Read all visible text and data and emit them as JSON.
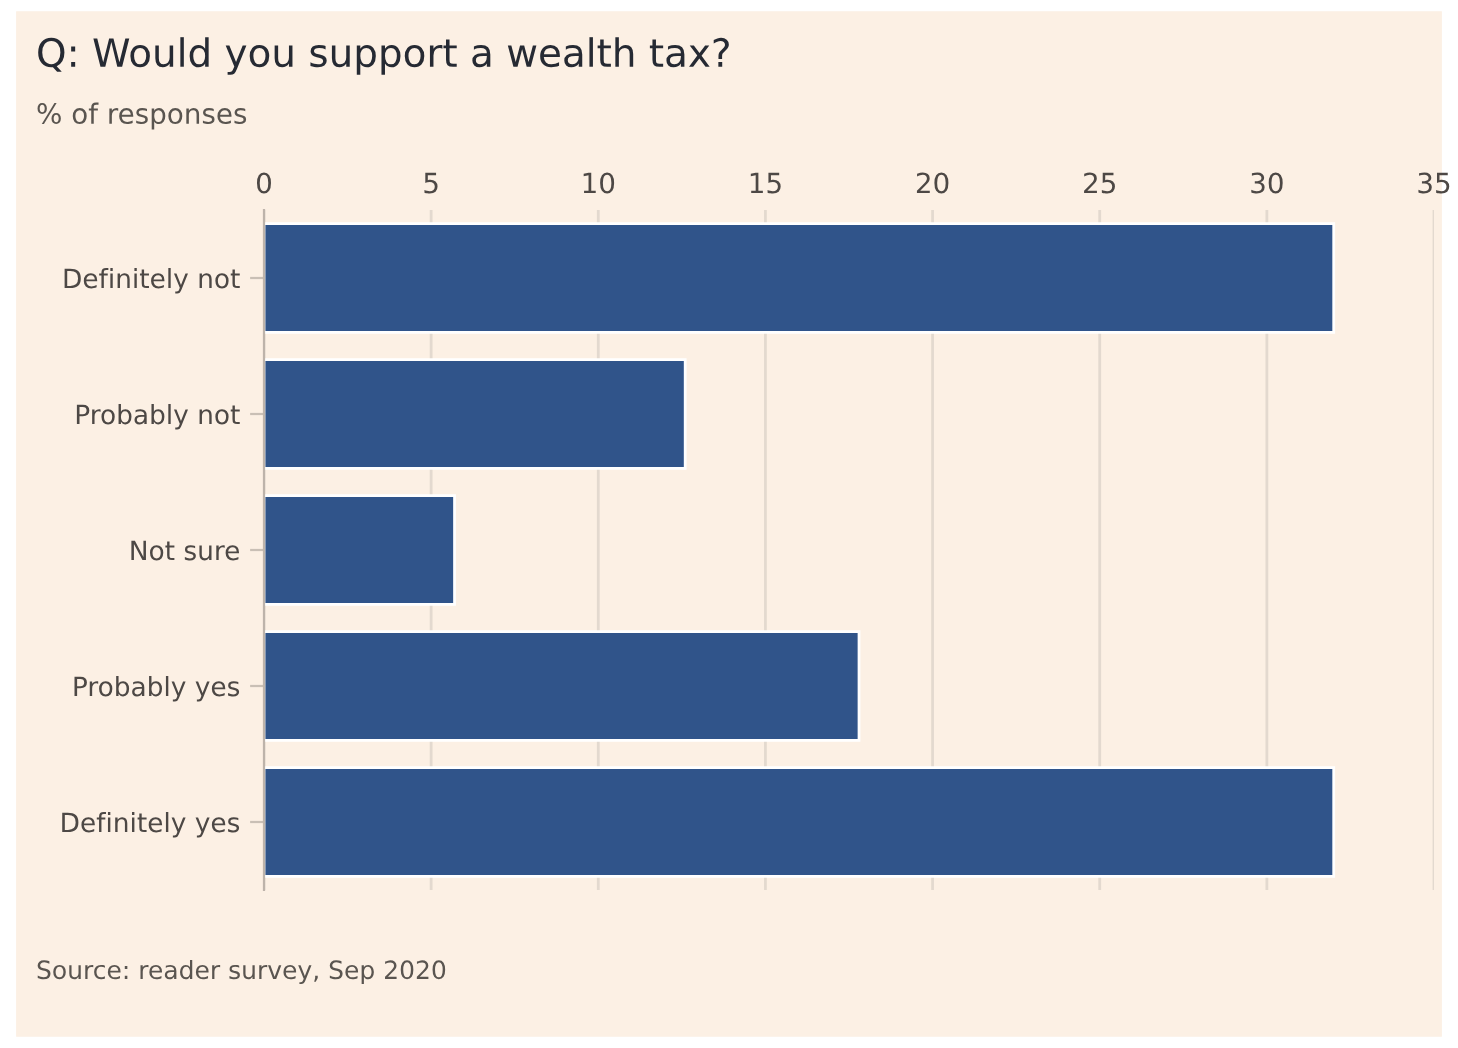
{
  "chart_data": {
    "type": "bar",
    "orientation": "horizontal",
    "title": "Q: Would you support a wealth tax?",
    "subtitle": "% of responses",
    "categories": [
      "Definitely not",
      "Probably not",
      "Not sure",
      "Probably yes",
      "Definitely yes"
    ],
    "values": [
      32.0,
      12.6,
      5.7,
      17.8,
      32.0
    ],
    "color": "#30548a",
    "xlim": [
      0,
      35
    ],
    "xticks": [
      0,
      5,
      10,
      15,
      20,
      25,
      30,
      35
    ],
    "grid": "x",
    "legend": false,
    "annotations": [
      "Source: reader survey, Sep 2020"
    ]
  }
}
